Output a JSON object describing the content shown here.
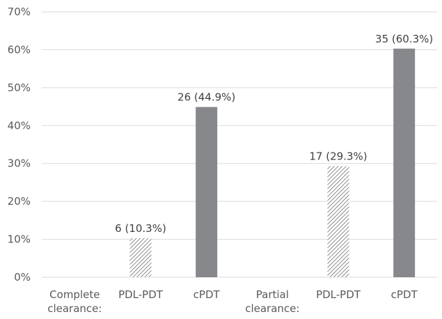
{
  "chart_data": {
    "type": "bar",
    "categories": [
      [
        "Complete",
        "clearance:"
      ],
      [
        "PDL-PDT"
      ],
      [
        "cPDT"
      ],
      [
        "Partial",
        "clearance:"
      ],
      [
        "PDL-PDT"
      ],
      [
        "cPDT"
      ]
    ],
    "values": [
      null,
      10.3,
      44.9,
      null,
      29.3,
      60.3
    ],
    "data_labels": [
      "",
      "6 (10.3%)",
      "26 (44.9%)",
      "",
      "17 (29.3%)",
      "35 (60.3%)"
    ],
    "bar_styles": [
      "none",
      "hatched",
      "solid",
      "none",
      "hatched",
      "solid"
    ],
    "y_ticks": [
      "0%",
      "10%",
      "20%",
      "30%",
      "40%",
      "50%",
      "60%",
      "70%"
    ],
    "ylim": [
      0,
      70
    ],
    "grid": true,
    "legend": "none",
    "title": "",
    "xlabel": "",
    "ylabel": "",
    "colors": {
      "solid_bar": "#87888c",
      "hatch_line": "#6e6e6e",
      "gridline": "#d9d9d9",
      "text": "#595959"
    }
  }
}
